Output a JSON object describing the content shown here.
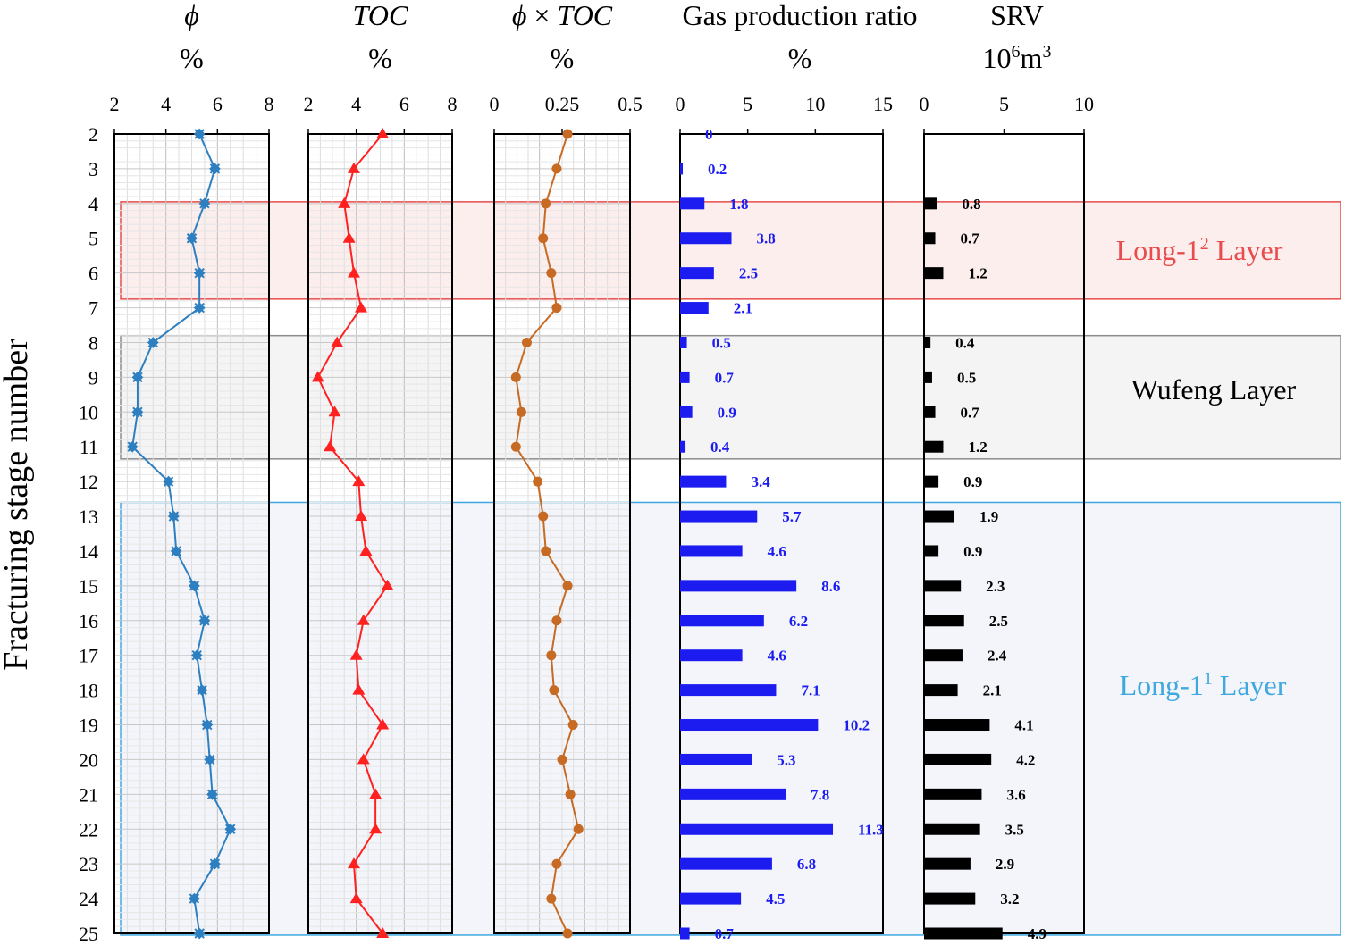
{
  "chart_data": {
    "type": "multi-panel well log",
    "y_axis": {
      "label": "Fracturing stage number",
      "range": [
        2,
        25
      ],
      "ticks": [
        "2",
        "3",
        "4",
        "5",
        "6",
        "7",
        "8",
        "9",
        "10",
        "11",
        "12",
        "13",
        "14",
        "15",
        "16",
        "17",
        "18",
        "19",
        "20",
        "21",
        "22",
        "23",
        "24",
        "25"
      ]
    },
    "stages": [
      2,
      3,
      4,
      5,
      6,
      7,
      8,
      9,
      10,
      11,
      12,
      13,
      14,
      15,
      16,
      17,
      18,
      19,
      20,
      21,
      22,
      23,
      24,
      25
    ],
    "layers": [
      {
        "name_prefix": "Long-1",
        "sup": "2",
        "name_suffix": " Layer",
        "stage_range": [
          3.95,
          6.75
        ],
        "color": "#e84c4c",
        "fill": "#fdeeee"
      },
      {
        "name_prefix": "Wufeng Layer",
        "sup": "",
        "name_suffix": "",
        "stage_range": [
          7.8,
          11.35
        ],
        "color": "#8c8c8c",
        "fill": "#f4f4f4"
      },
      {
        "name_prefix": "Long-1",
        "sup": "1",
        "name_suffix": " Layer",
        "stage_range": [
          12.6,
          25.05
        ],
        "color": "#3fa8e0",
        "fill": "#f3f5fa"
      }
    ],
    "panels": [
      {
        "id": "phi",
        "type": "line",
        "title": "ϕ",
        "unit": "%",
        "xlim": [
          2,
          8
        ],
        "ticks": [
          "2",
          "4",
          "6",
          "8"
        ],
        "grid": true,
        "color": "#2e7fc0",
        "marker": "x",
        "values": [
          5.3,
          5.9,
          5.5,
          5.0,
          5.3,
          5.3,
          3.5,
          2.9,
          2.9,
          2.7,
          4.1,
          4.3,
          4.4,
          5.1,
          5.5,
          5.2,
          5.4,
          5.6,
          5.7,
          5.8,
          6.5,
          5.9,
          5.1,
          5.3
        ]
      },
      {
        "id": "toc",
        "type": "line",
        "title": "TOC",
        "unit": "%",
        "xlim": [
          2,
          8
        ],
        "ticks": [
          "2",
          "4",
          "6",
          "8"
        ],
        "grid": true,
        "color": "#ff2020",
        "marker": "triangle",
        "values": [
          5.1,
          3.9,
          3.5,
          3.7,
          3.9,
          4.2,
          3.2,
          2.4,
          3.1,
          2.9,
          4.1,
          4.2,
          4.4,
          5.3,
          4.3,
          4.0,
          4.1,
          5.1,
          4.3,
          4.8,
          4.8,
          3.9,
          4.0,
          5.1
        ]
      },
      {
        "id": "phi_toc",
        "type": "line",
        "title_prefix": "ϕ",
        "title_suffix": "TOC",
        "unit": "%",
        "xlim": [
          0,
          0.5
        ],
        "ticks": [
          "0",
          "0.25",
          "0.5"
        ],
        "grid": true,
        "color": "#c66a24",
        "marker": "circle",
        "values": [
          0.27,
          0.23,
          0.19,
          0.18,
          0.21,
          0.23,
          0.12,
          0.08,
          0.1,
          0.08,
          0.16,
          0.18,
          0.19,
          0.27,
          0.23,
          0.21,
          0.22,
          0.29,
          0.25,
          0.28,
          0.31,
          0.23,
          0.21,
          0.27
        ]
      },
      {
        "id": "gas",
        "type": "bar",
        "title": "Gas production ratio",
        "unit": "%",
        "xlim": [
          0,
          15
        ],
        "ticks": [
          "0",
          "5",
          "10",
          "15"
        ],
        "grid": false,
        "color": "#1c1cf0",
        "label_color": "#1c1cf0",
        "values": [
          0,
          0.2,
          1.8,
          3.8,
          2.5,
          2.1,
          0.5,
          0.7,
          0.9,
          0.4,
          3.4,
          5.7,
          4.6,
          8.6,
          6.2,
          4.6,
          7.1,
          10.2,
          5.3,
          7.8,
          11.3,
          6.8,
          4.5,
          0.7
        ],
        "labels": [
          "0",
          "0.2",
          "1.8",
          "3.8",
          "2.5",
          "2.1",
          "0.5",
          "0.7",
          "0.9",
          "0.4",
          "3.4",
          "5.7",
          "4.6",
          "8.6",
          "6.2",
          "4.6",
          "7.1",
          "10.2",
          "5.3",
          "7.8",
          "11.3",
          "6.8",
          "4.5",
          "0.7"
        ]
      },
      {
        "id": "srv",
        "type": "bar",
        "title": "SRV",
        "unit_base": "10",
        "unit_exp": "6",
        "unit_rest": "m",
        "unit_exp2": "3",
        "xlim": [
          0,
          10
        ],
        "ticks": [
          "0",
          "5",
          "10"
        ],
        "grid": false,
        "color": "#000000",
        "label_color": "#000000",
        "values": [
          null,
          null,
          0.8,
          0.7,
          1.2,
          null,
          0.4,
          0.5,
          0.7,
          1.2,
          0.9,
          1.9,
          0.9,
          2.3,
          2.5,
          2.4,
          2.1,
          4.1,
          4.2,
          3.6,
          3.5,
          2.9,
          3.2,
          4.9
        ],
        "labels": [
          "",
          "",
          "0.8",
          "0.7",
          "1.2",
          "",
          "0.4",
          "0.5",
          "0.7",
          "1.2",
          "0.9",
          "1.9",
          "0.9",
          "2.3",
          "2.5",
          "2.4",
          "2.1",
          "4.1",
          "4.2",
          "3.6",
          "3.5",
          "2.9",
          "3.2",
          "4.9"
        ]
      }
    ]
  }
}
